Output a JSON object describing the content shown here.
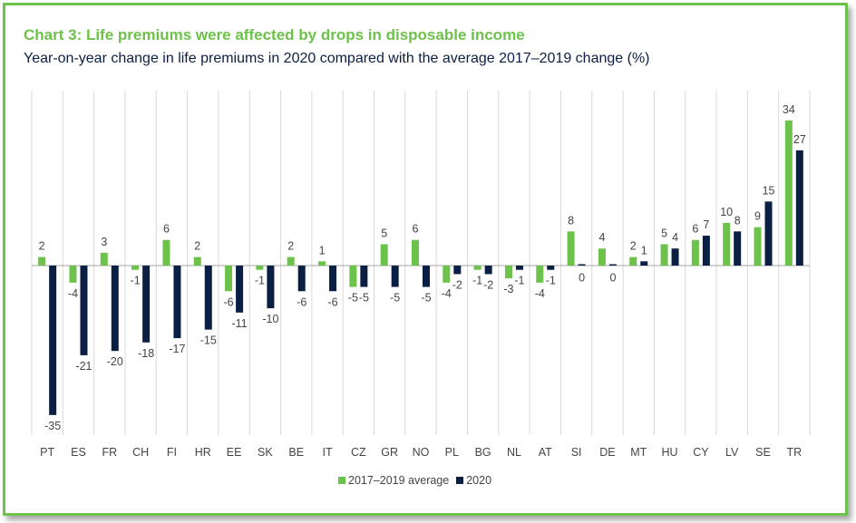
{
  "title": "Chart 3: Life premiums were affected by drops in disposable income",
  "subtitle": "Year-on-year change in life premiums in 2020 compared with the average 2017–2019 change (%)",
  "colors": {
    "avg": "#6cc24a",
    "y2020": "#0b1f44",
    "grid": "#d9d9d9",
    "axis": "#a6a6a6"
  },
  "chart_data": {
    "type": "bar",
    "categories": [
      "PT",
      "ES",
      "FR",
      "CH",
      "FI",
      "HR",
      "EE",
      "SK",
      "BE",
      "IT",
      "CZ",
      "GR",
      "NO",
      "PL",
      "BG",
      "NL",
      "AT",
      "SI",
      "DE",
      "MT",
      "HU",
      "CY",
      "LV",
      "SE",
      "TR"
    ],
    "series": [
      {
        "name": "2017–2019 average",
        "values": [
          2,
          -4,
          3,
          -1,
          6,
          2,
          -6,
          -1,
          2,
          1,
          -5,
          5,
          6,
          -4,
          -1,
          -3,
          -4,
          8,
          4,
          2,
          5,
          6,
          10,
          9,
          34
        ]
      },
      {
        "name": "2020",
        "values": [
          -35,
          -21,
          -20,
          -18,
          -17,
          -15,
          -11,
          -10,
          -6,
          -6,
          -5,
          -5,
          -5,
          -2,
          -2,
          -1,
          -1,
          0,
          0,
          1,
          4,
          7,
          8,
          15,
          27
        ]
      }
    ],
    "labels_avg": [
      "2",
      "-4",
      "3",
      "-1",
      "6",
      "2",
      "-6",
      "-1",
      "2",
      "1",
      "-5",
      "5",
      "6",
      "-4",
      "-1",
      "-3",
      "-4",
      "8",
      "4",
      "2",
      "5",
      "6",
      "10",
      "9",
      "34"
    ],
    "labels_2020": [
      "-35",
      "-21",
      "-20",
      "-18",
      "-17",
      "-15",
      "-11",
      "-10",
      "-6",
      "-6",
      "-5",
      "-5",
      "-5",
      "-2",
      "-2",
      "-1",
      "-1",
      "0",
      "0",
      "1",
      "4",
      "7",
      "8",
      "15",
      "27"
    ],
    "legend": [
      "2017–2019 average",
      "2020"
    ],
    "ylim": [
      -40,
      40
    ],
    "grid": "vertical"
  }
}
